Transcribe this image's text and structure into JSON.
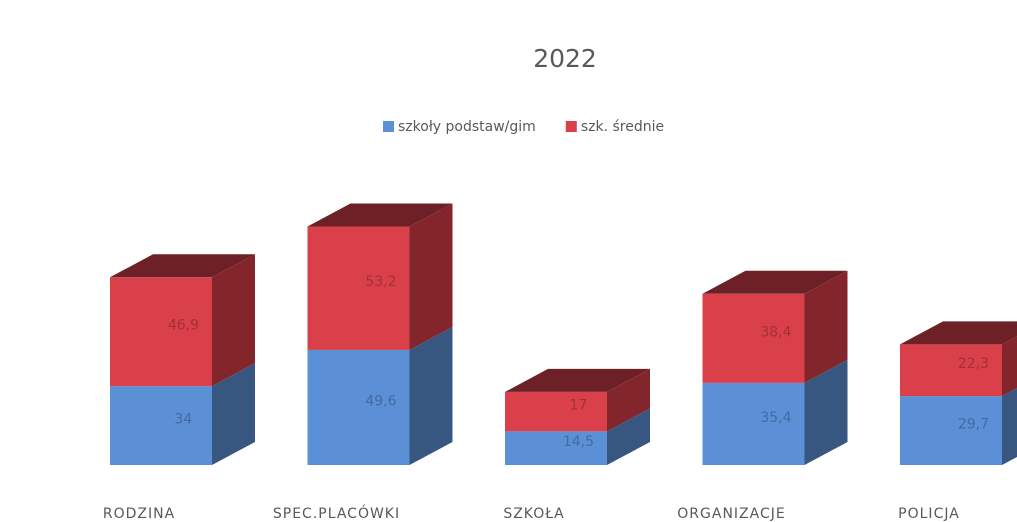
{
  "chart_data": {
    "type": "bar",
    "title": "2022",
    "stacked": true,
    "categories": [
      "RODZINA",
      "SPEC.PLACÓWKI",
      "SZKOŁA",
      "ORGANIZACJE",
      "POLICJA"
    ],
    "series": [
      {
        "name": "szkoły podstaw/gim",
        "color": "#5b8fd6",
        "values": [
          34,
          49.6,
          14.5,
          35.4,
          29.7
        ],
        "value_labels": [
          "34",
          "49,6",
          "14,5",
          "35,4",
          "29,7"
        ]
      },
      {
        "name": "szk. średnie",
        "color": "#d9404a",
        "values": [
          46.9,
          53.2,
          17,
          38.4,
          22.3
        ],
        "value_labels": [
          "46,9",
          "53,2",
          "17",
          "38,4",
          "22,3"
        ]
      }
    ],
    "legend": "top"
  }
}
